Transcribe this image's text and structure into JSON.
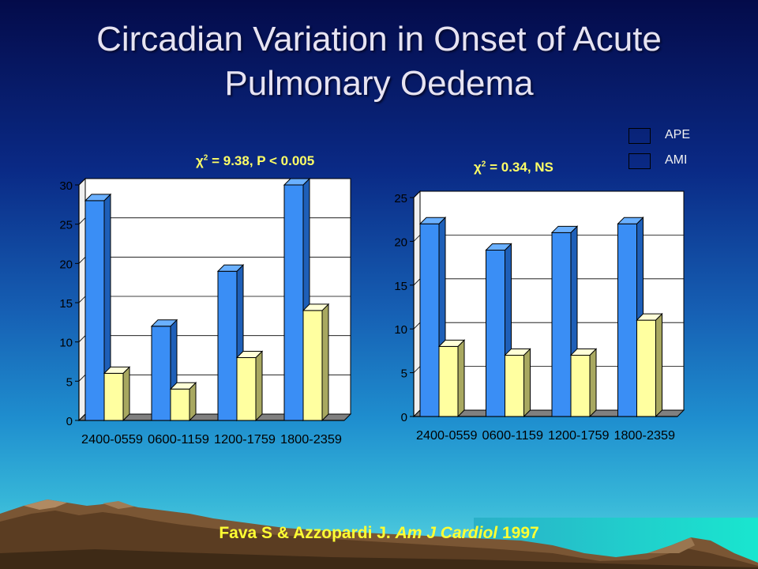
{
  "title": "Circadian Variation in Onset of Acute Pulmonary Oedema",
  "legend": [
    {
      "label": "APE",
      "color": "#3a8ef5"
    },
    {
      "label": "AMI",
      "color": "#ffffa0"
    }
  ],
  "chart_data": [
    {
      "type": "bar",
      "annotation": {
        "chi": "χ",
        "exp": "2",
        "text": " = 9.38, P < 0.005"
      },
      "categories": [
        "2400-0559",
        "0600-1159",
        "1200-1759",
        "1800-2359"
      ],
      "series": [
        {
          "name": "APE",
          "values": [
            28,
            12,
            19,
            30
          ]
        },
        {
          "name": "AMI",
          "values": [
            6,
            4,
            8,
            14
          ]
        }
      ],
      "ylim": [
        0,
        30
      ],
      "yticks": [
        0,
        5,
        10,
        15,
        20,
        25,
        30
      ],
      "grid": true
    },
    {
      "type": "bar",
      "annotation": {
        "chi": "χ",
        "exp": "2",
        "text": " = 0.34, NS"
      },
      "categories": [
        "2400-0559",
        "0600-1159",
        "1200-1759",
        "1800-2359"
      ],
      "series": [
        {
          "name": "APE",
          "values": [
            22,
            19,
            21,
            22
          ]
        },
        {
          "name": "AMI",
          "values": [
            8,
            7,
            7,
            11
          ]
        }
      ],
      "ylim": [
        0,
        25
      ],
      "yticks": [
        0,
        5,
        10,
        15,
        20,
        25
      ],
      "grid": true
    }
  ],
  "citation": {
    "authors": "Fava S & Azzopardi J. ",
    "journal": "Am J Cardiol",
    "year": " 1997"
  }
}
